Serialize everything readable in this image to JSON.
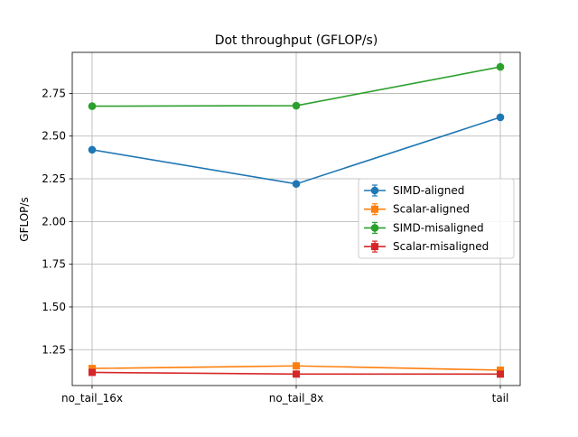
{
  "chart_data": {
    "type": "line",
    "title": "Dot throughput (GFLOP/s)",
    "xlabel": "",
    "ylabel": "GFLOP/s",
    "categories": [
      "no_tail_16x",
      "no_tail_8x",
      "tail"
    ],
    "ylim": [
      1.04,
      2.99
    ],
    "yticks": [
      1.25,
      1.5,
      1.75,
      2.0,
      2.25,
      2.5,
      2.75
    ],
    "ytick_labels": [
      "1.25",
      "1.50",
      "1.75",
      "2.00",
      "2.25",
      "2.50",
      "2.75"
    ],
    "grid": true,
    "legend_position": "center-right",
    "series": [
      {
        "name": "SIMD-aligned",
        "values": [
          2.42,
          2.22,
          2.61
        ],
        "color": "#1f77b4",
        "marker": "circle"
      },
      {
        "name": "Scalar-aligned",
        "values": [
          1.14,
          1.155,
          1.13
        ],
        "color": "#ff7f0e",
        "marker": "square"
      },
      {
        "name": "SIMD-misaligned",
        "values": [
          2.675,
          2.678,
          2.905
        ],
        "color": "#2ca02c",
        "marker": "circle"
      },
      {
        "name": "Scalar-misaligned",
        "values": [
          1.117,
          1.107,
          1.107
        ],
        "color": "#d62728",
        "marker": "square"
      }
    ]
  }
}
